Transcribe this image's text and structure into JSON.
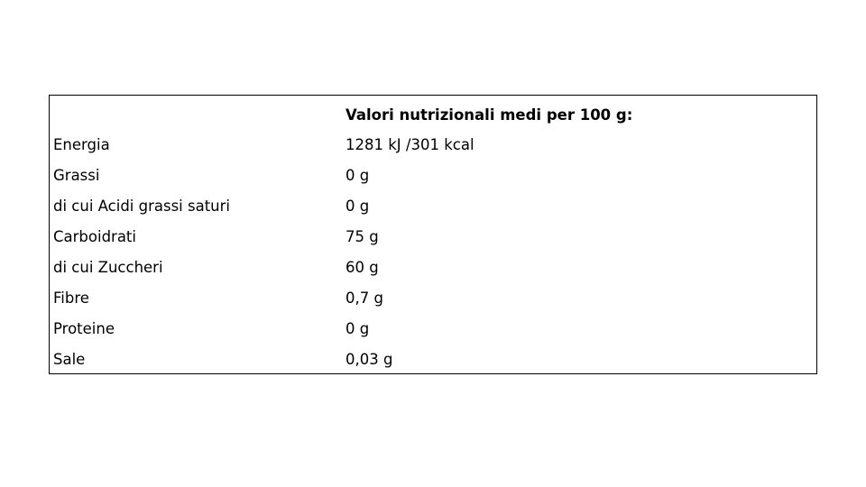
{
  "table": {
    "header": "Valori nutrizionali medi per 100 g:",
    "rows": [
      [
        "Energia",
        "1281 kJ /301 kcal"
      ],
      [
        "Grassi",
        "0 g"
      ],
      [
        "di cui Acidi grassi saturi",
        "0 g"
      ],
      [
        "Carboidrati",
        "75 g"
      ],
      [
        "di cui Zuccheri",
        "60 g"
      ],
      [
        "Fibre",
        "0,7 g"
      ],
      [
        "Proteine",
        "0 g"
      ],
      [
        "Sale",
        "0,03 g"
      ]
    ]
  }
}
